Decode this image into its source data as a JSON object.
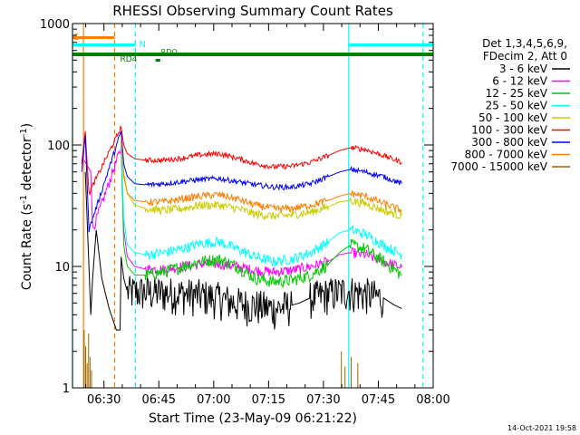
{
  "chart_data": {
    "type": "line",
    "title": "RHESSI Observing Summary Count Rates",
    "xlabel": "Start Time (23-May-09 06:21:22)",
    "ylabel_main": "Count Rate (s",
    "ylabel_sup1": "-1",
    "ylabel_mid": " detector",
    "ylabel_sup2": "-1",
    "ylabel_end": ")",
    "x_unit": "minutes since 06:21:22",
    "xlim": [
      0,
      98.6
    ],
    "ylim": [
      1,
      1000
    ],
    "yscale": "log",
    "x_ticks": [
      {
        "label": "06:30",
        "x": 8.6
      },
      {
        "label": "06:45",
        "x": 23.6
      },
      {
        "label": "07:00",
        "x": 38.6
      },
      {
        "label": "07:15",
        "x": 53.6
      },
      {
        "label": "07:30",
        "x": 68.6
      },
      {
        "label": "07:45",
        "x": 83.6
      },
      {
        "label": "08:00",
        "x": 98.6
      }
    ],
    "y_ticks": [
      {
        "label": "1",
        "y": 1
      },
      {
        "label": "10",
        "y": 10
      },
      {
        "label": "100",
        "y": 100
      },
      {
        "label": "1000",
        "y": 1000
      }
    ],
    "legend_header": [
      "Det 1,3,4,5,6,9,",
      "FDecim 2, Att 0"
    ],
    "series": [
      {
        "name": "3 - 6 keV",
        "color": "#000000",
        "values": [
          [
            3.5,
            60
          ],
          [
            5.0,
            4
          ],
          [
            5.5,
            8
          ],
          [
            6.5,
            20
          ],
          [
            8.0,
            8
          ],
          [
            10,
            4.5
          ],
          [
            12,
            3
          ],
          [
            13.0,
            3
          ],
          [
            13.3,
            12
          ],
          [
            14,
            8
          ],
          [
            15,
            6.2
          ],
          [
            20,
            6.2
          ],
          [
            30,
            6.0
          ],
          [
            35,
            5.8
          ],
          [
            40,
            5.5
          ],
          [
            45,
            5.0
          ],
          [
            50,
            4.8
          ],
          [
            55,
            4.5
          ],
          [
            60,
            4.8
          ],
          [
            62,
            5.0
          ],
          [
            65,
            5.5
          ],
          [
            70,
            6.0
          ],
          [
            75,
            6.3
          ],
          [
            80,
            6.0
          ],
          [
            85,
            5.5
          ],
          [
            88,
            4.8
          ],
          [
            90,
            4.5
          ]
        ]
      },
      {
        "name": "6 - 12 keV",
        "color": "#ff00ff",
        "values": [
          [
            3.2,
            75
          ],
          [
            5.0,
            60
          ],
          [
            5.5,
            20
          ],
          [
            13.3,
            95
          ],
          [
            14,
            20
          ],
          [
            15,
            12
          ],
          [
            17,
            10
          ],
          [
            20,
            9.5
          ],
          [
            25,
            9.5
          ],
          [
            30,
            10
          ],
          [
            35,
            10.5
          ],
          [
            40,
            10.5
          ],
          [
            45,
            10
          ],
          [
            50,
            9.3
          ],
          [
            55,
            9
          ],
          [
            60,
            9.3
          ],
          [
            65,
            10
          ],
          [
            70,
            11
          ],
          [
            73,
            12.5
          ],
          [
            76,
            13
          ],
          [
            80,
            12.5
          ],
          [
            85,
            11
          ],
          [
            90,
            9.8
          ]
        ]
      },
      {
        "name": "12 - 25 keV",
        "color": "#00cc00",
        "values": [
          [
            13.3,
            100
          ],
          [
            14,
            15
          ],
          [
            15,
            10
          ],
          [
            17,
            8.5
          ],
          [
            20,
            8.5
          ],
          [
            25,
            9
          ],
          [
            30,
            10
          ],
          [
            35,
            11
          ],
          [
            40,
            11.5
          ],
          [
            45,
            10
          ],
          [
            50,
            8
          ],
          [
            55,
            7.5
          ],
          [
            60,
            7.7
          ],
          [
            65,
            8.5
          ],
          [
            70,
            10.5
          ],
          [
            73,
            13
          ],
          [
            76,
            15
          ],
          [
            80,
            14
          ],
          [
            85,
            11
          ],
          [
            90,
            8.5
          ]
        ]
      },
      {
        "name": "25 - 50 keV",
        "color": "#00ffff",
        "values": [
          [
            13.3,
            110
          ],
          [
            14,
            25
          ],
          [
            15,
            15
          ],
          [
            17,
            13
          ],
          [
            20,
            12.5
          ],
          [
            25,
            13
          ],
          [
            30,
            14
          ],
          [
            35,
            15.5
          ],
          [
            40,
            16
          ],
          [
            45,
            14
          ],
          [
            50,
            12
          ],
          [
            55,
            11
          ],
          [
            60,
            11.5
          ],
          [
            65,
            13
          ],
          [
            70,
            16
          ],
          [
            73,
            19
          ],
          [
            76,
            20
          ],
          [
            80,
            18.5
          ],
          [
            85,
            15
          ],
          [
            90,
            12.5
          ]
        ]
      },
      {
        "name": "50 - 100 keV",
        "color": "#cccc00",
        "values": [
          [
            13.3,
            120
          ],
          [
            14,
            60
          ],
          [
            15,
            40
          ],
          [
            17,
            32
          ],
          [
            20,
            30
          ],
          [
            25,
            29
          ],
          [
            30,
            30
          ],
          [
            35,
            32
          ],
          [
            40,
            32
          ],
          [
            45,
            30
          ],
          [
            50,
            27
          ],
          [
            55,
            26
          ],
          [
            60,
            26.5
          ],
          [
            65,
            28
          ],
          [
            70,
            31
          ],
          [
            73,
            34
          ],
          [
            76,
            35
          ],
          [
            80,
            33
          ],
          [
            85,
            29
          ],
          [
            90,
            26
          ]
        ]
      },
      {
        "name": "100 - 300 keV",
        "color": "#ff0000",
        "values": [
          [
            2.5,
            70
          ],
          [
            3.5,
            130
          ],
          [
            4.5,
            40
          ],
          [
            13.3,
            140
          ],
          [
            14,
            100
          ],
          [
            15,
            85
          ],
          [
            17,
            77
          ],
          [
            20,
            75
          ],
          [
            25,
            75
          ],
          [
            30,
            78
          ],
          [
            35,
            83
          ],
          [
            40,
            85
          ],
          [
            45,
            78
          ],
          [
            50,
            70
          ],
          [
            55,
            66
          ],
          [
            60,
            67
          ],
          [
            65,
            72
          ],
          [
            70,
            82
          ],
          [
            73,
            90
          ],
          [
            76,
            95
          ],
          [
            80,
            92
          ],
          [
            85,
            82
          ],
          [
            90,
            72
          ]
        ]
      },
      {
        "name": "300 - 800 keV",
        "color": "#0000ff",
        "values": [
          [
            2.5,
            60
          ],
          [
            3.5,
            120
          ],
          [
            4.5,
            20
          ],
          [
            13.3,
            130
          ],
          [
            14,
            70
          ],
          [
            15,
            55
          ],
          [
            17,
            48
          ],
          [
            20,
            47
          ],
          [
            25,
            48
          ],
          [
            30,
            50
          ],
          [
            35,
            52
          ],
          [
            40,
            53
          ],
          [
            45,
            50
          ],
          [
            50,
            47
          ],
          [
            55,
            45
          ],
          [
            60,
            45
          ],
          [
            65,
            48
          ],
          [
            70,
            55
          ],
          [
            73,
            60
          ],
          [
            76,
            63
          ],
          [
            80,
            60
          ],
          [
            85,
            55
          ],
          [
            90,
            48
          ]
        ]
      },
      {
        "name": "800 - 7000 keV",
        "color": "#ff8000",
        "values": [
          [
            13.3,
            110
          ],
          [
            14,
            55
          ],
          [
            15,
            40
          ],
          [
            17,
            35
          ],
          [
            20,
            34
          ],
          [
            25,
            34
          ],
          [
            30,
            36
          ],
          [
            35,
            38
          ],
          [
            40,
            39
          ],
          [
            45,
            36
          ],
          [
            50,
            32
          ],
          [
            55,
            30
          ],
          [
            60,
            30
          ],
          [
            65,
            32
          ],
          [
            70,
            35
          ],
          [
            73,
            38
          ],
          [
            76,
            40
          ],
          [
            80,
            38
          ],
          [
            85,
            33
          ],
          [
            90,
            29
          ]
        ]
      },
      {
        "name": "7000 - 15000 keV",
        "color": "#996600",
        "values": []
      }
    ],
    "flags": [
      {
        "label": "S",
        "color": "#ff8000"
      },
      {
        "label": "N",
        "color": "#00ffff"
      },
      {
        "label": "RDO",
        "color": "#008000"
      },
      {
        "label": "RD4",
        "color": "#008000"
      }
    ],
    "vertical_markers": [
      {
        "x": 0.0,
        "color": "#00ffff",
        "style": "solid"
      },
      {
        "x": 3.0,
        "color": "#ff8000",
        "style": "solid"
      },
      {
        "x": 11.5,
        "color": "#ff8000",
        "style": "dashed"
      },
      {
        "x": 17.2,
        "color": "#00ffff",
        "style": "dashed"
      },
      {
        "x": 75.5,
        "color": "#00ffff",
        "style": "solid"
      },
      {
        "x": 95.8,
        "color": "#00ffff",
        "style": "dashed"
      }
    ],
    "timestamp": "14-Oct-2021 19:58"
  }
}
